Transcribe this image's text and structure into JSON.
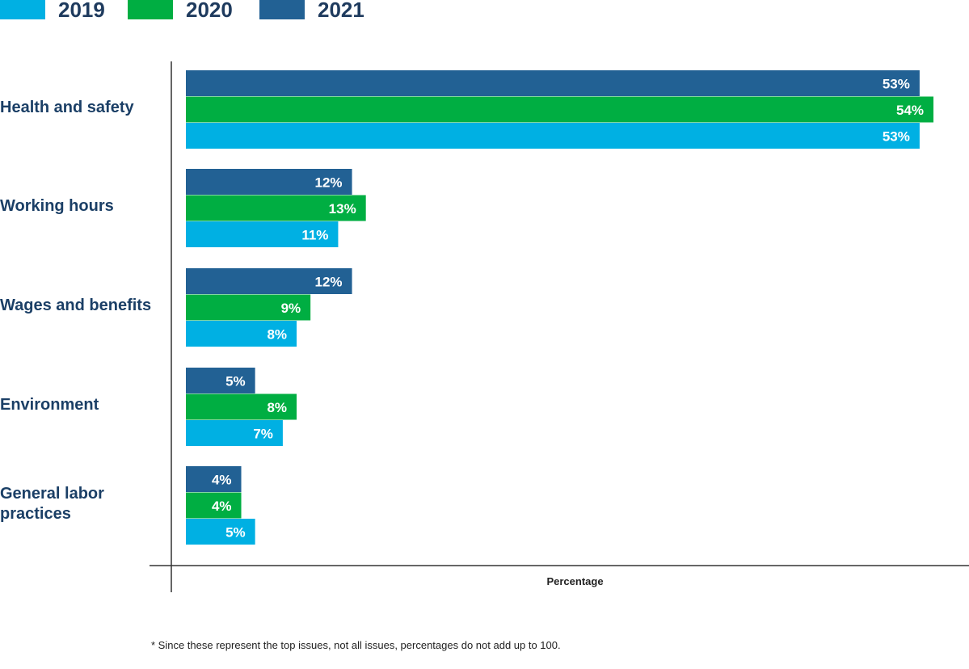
{
  "chart_data": {
    "type": "bar",
    "orientation": "horizontal",
    "categories": [
      "Health and safety",
      "Working hours",
      "Wages and benefits",
      "Environment",
      "General labor practices"
    ],
    "category_display": [
      [
        "Health and safety"
      ],
      [
        "Working hours"
      ],
      [
        "Wages and benefits"
      ],
      [
        "Environment"
      ],
      [
        "General labor",
        "practices"
      ]
    ],
    "series": [
      {
        "name": "2021",
        "color": "#226194",
        "values": [
          53,
          12,
          12,
          5,
          4
        ],
        "labels": [
          "53%",
          "12%",
          "12%",
          "5%",
          "4%"
        ]
      },
      {
        "name": "2020",
        "color": "#00ae42",
        "values": [
          54,
          13,
          9,
          8,
          4
        ],
        "labels": [
          "54%",
          "13%",
          "9%",
          "8%",
          "4%"
        ]
      },
      {
        "name": "2019",
        "color": "#00b0e3",
        "values": [
          53,
          11,
          8,
          7,
          5
        ],
        "labels": [
          "53%",
          "11%",
          "8%",
          "7%",
          "5%"
        ]
      }
    ],
    "legend": [
      {
        "name": "2019",
        "color": "#00b0e3"
      },
      {
        "name": "2020",
        "color": "#00ae42"
      },
      {
        "name": "2021",
        "color": "#226194"
      }
    ],
    "legend_position": "top-left",
    "xlabel": "Percentage",
    "ylabel": "",
    "xlim": [
      0,
      54
    ],
    "grid": false,
    "footnote": "* Since these represent the top issues, not all issues, percentages do not add up to 100."
  }
}
